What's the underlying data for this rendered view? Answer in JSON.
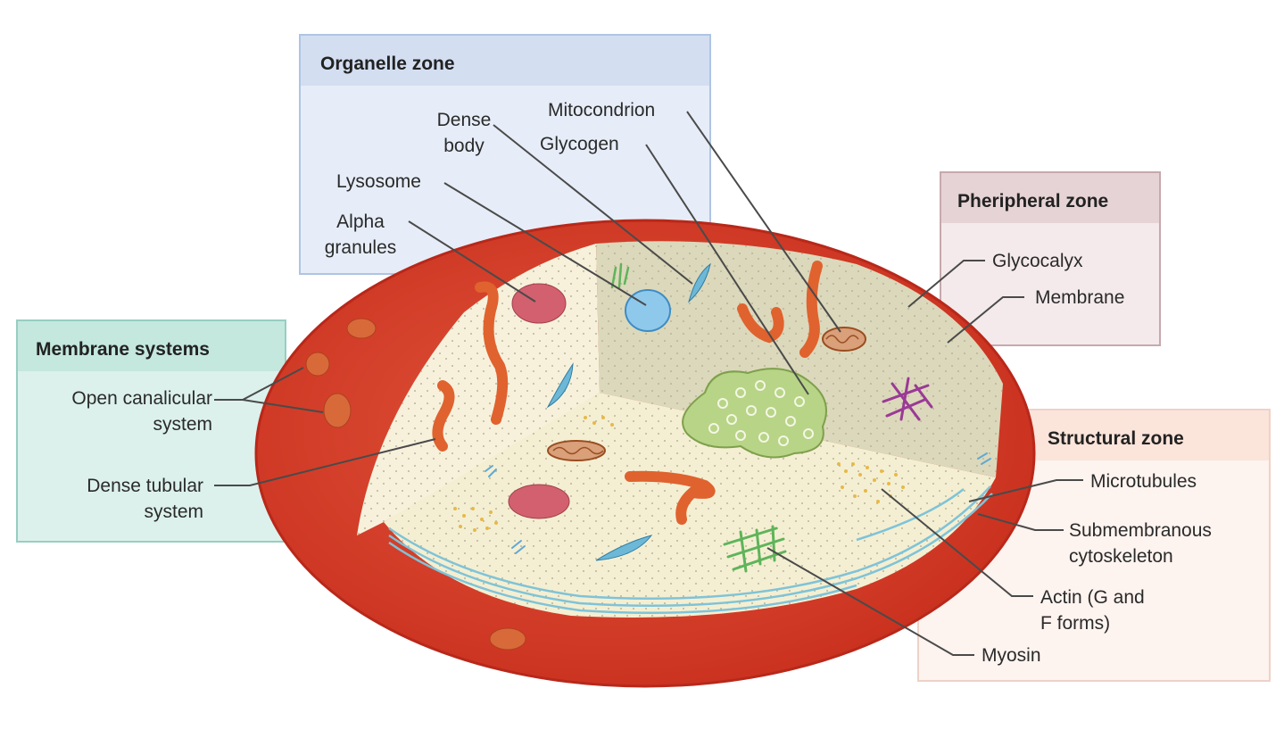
{
  "zones": {
    "organelle": "Organelle zone",
    "peripheral": "Pheripheral zone",
    "membrane_systems": "Membrane systems",
    "structural": "Structural zone"
  },
  "labels": {
    "dense_body": [
      "Dense",
      "body"
    ],
    "mitocondrion": "Mitocondrion",
    "glycogen": "Glycogen",
    "lysosome": "Lysosome",
    "alpha_granules": [
      "Alpha",
      "granules"
    ],
    "glycocalyx": "Glycocalyx",
    "membrane": "Membrane",
    "open_canalicular": [
      "Open canalicular",
      "system"
    ],
    "dense_tubular": [
      "Dense tubular",
      "system"
    ],
    "microtubules": "Microtubules",
    "submembranous": [
      "Submembranous",
      "cytoskeleton"
    ],
    "actin": [
      "Actin (G and",
      "F forms)"
    ],
    "myosin": "Myosin"
  },
  "colors": {
    "outer_membrane": "#d8402a",
    "cytoplasm": "#f6f0d6",
    "back_wall": "#dcd8bb",
    "mitochondria": "#e0622e",
    "alpha_granule": "#d2606e",
    "lysosome": "#8ec9ec",
    "glycogen": "#b8d487",
    "microtubules": "#7fc3d8",
    "actin": "#e8b847",
    "myosin": "#5fb45a",
    "dense_body_icon": "#6cb8d6",
    "purple_structure": "#9a3a96"
  }
}
